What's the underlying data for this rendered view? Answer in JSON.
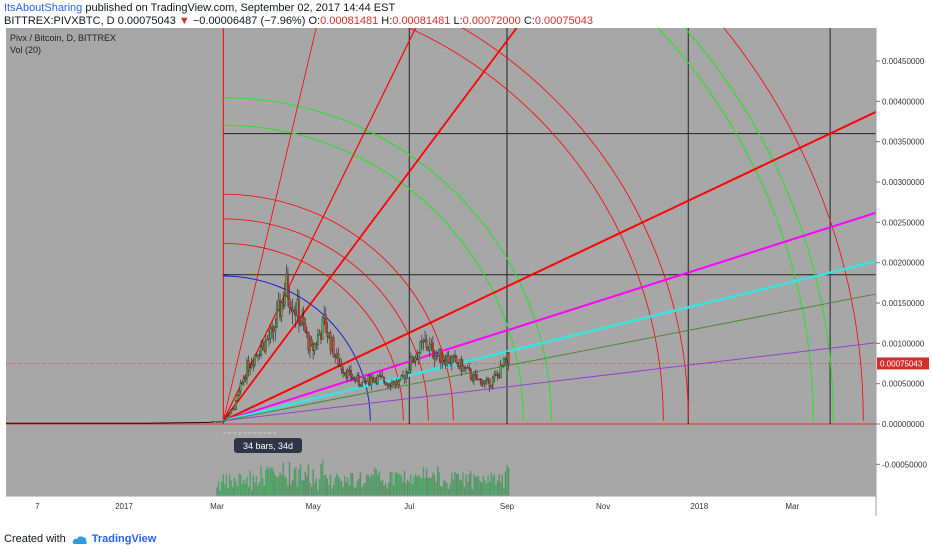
{
  "header": {
    "author": "ItsAboutSharing",
    "published": "published on TradingView.com, September 02, 2017 14:44 EST",
    "symbol": "BITTREX:PIVXBTC, D",
    "price": "0.00075043",
    "arrow": "▼",
    "change": "−0.00006487 (−7.96%)",
    "o_label": "O:",
    "o": "0.00081481",
    "h_label": "H:",
    "h": "0.00081481",
    "l_label": "L:",
    "l": "0.00072000",
    "c_label": "C:",
    "c": "0.00075043"
  },
  "legend": {
    "pair": "Pivx / Bitcoin, D, BITTREX",
    "vol": "Vol (20)"
  },
  "measure_label": "34 bars, 34d",
  "footer": {
    "created": "Created with",
    "brand": "TradingView"
  },
  "colors": {
    "up": "#4caf50",
    "down": "#e53935",
    "fan_red": "#ff0000",
    "magenta": "#ff00ff",
    "cyan": "#40e0e0",
    "arc_green": "#33dd33",
    "arc_blue": "#2222cc"
  },
  "chart_data": {
    "type": "candlestick",
    "title": "",
    "y_axis": {
      "scale": "linear",
      "ticks": [
        0.0045,
        0.004,
        0.0035,
        0.003,
        0.0025,
        0.002,
        0.0015,
        0.001,
        0.0005,
        0.0,
        -0.0005
      ],
      "tick_labels": [
        "0.00450000",
        "0.00400000",
        "0.00350000",
        "0.00300000",
        "0.00250000",
        "0.00200000",
        "0.00150000",
        "0.00100000",
        "0.00050000",
        "0.00000000",
        "-0.00050000"
      ],
      "ylim": [
        -0.00082,
        0.00478
      ]
    },
    "x_axis": {
      "tick_labels": [
        "7",
        "2017",
        "Mar",
        "May",
        "Jul",
        "Sep",
        "Nov",
        "2018",
        "Mar"
      ],
      "tick_dates": [
        "2016-11-07",
        "2017-01-01",
        "2017-03-01",
        "2017-05-01",
        "2017-07-01",
        "2017-09-01",
        "2017-11-01",
        "2018-01-01",
        "2018-03-01"
      ]
    },
    "last_price": 0.00075043,
    "last_price_label": "0.00075043",
    "price_path": [
      [
        "2016-06-01",
        1e-05
      ],
      [
        "2016-10-01",
        1e-05
      ],
      [
        "2017-01-15",
        1e-05
      ],
      [
        "2017-02-25",
        2e-05
      ],
      [
        "2017-03-05",
        4e-05
      ],
      [
        "2017-03-12",
        0.0002
      ],
      [
        "2017-03-20",
        0.0007
      ],
      [
        "2017-03-28",
        0.00095
      ],
      [
        "2017-04-05",
        0.0011
      ],
      [
        "2017-04-14",
        0.0017
      ],
      [
        "2017-04-22",
        0.00135
      ],
      [
        "2017-04-30",
        0.0009
      ],
      [
        "2017-05-08",
        0.00125
      ],
      [
        "2017-05-16",
        0.0008
      ],
      [
        "2017-05-24",
        0.0006
      ],
      [
        "2017-06-01",
        0.0005
      ],
      [
        "2017-06-09",
        0.00058
      ],
      [
        "2017-06-17",
        0.00052
      ],
      [
        "2017-06-25",
        0.0005
      ],
      [
        "2017-07-03",
        0.0008
      ],
      [
        "2017-07-11",
        0.001
      ],
      [
        "2017-07-19",
        0.00085
      ],
      [
        "2017-07-27",
        0.0008
      ],
      [
        "2017-08-04",
        0.0007
      ],
      [
        "2017-08-12",
        0.00055
      ],
      [
        "2017-08-20",
        0.0005
      ],
      [
        "2017-08-26",
        0.0006
      ],
      [
        "2017-09-01",
        0.0008
      ],
      [
        "2017-09-02",
        0.00075
      ]
    ],
    "gann": {
      "origin": [
        "2017-03-05",
        4e-05
      ],
      "grid_dates": [
        "2017-07-01",
        "2017-09-01",
        "2017-12-25",
        "2018-03-25"
      ],
      "grid_prices": [
        0.00185,
        0.0036
      ],
      "rays_through": [
        [
          "2017-05-01",
          0.00475
        ],
        [
          "2017-07-01",
          0.00475
        ],
        [
          "2017-09-01",
          0.00475
        ],
        [
          "2018-03-25",
          0.0036
        ],
        [
          "2018-04-20",
          0.0026
        ],
        [
          "2018-04-20",
          0.002
        ],
        [
          "2018-04-20",
          0.0016
        ],
        [
          "2018-04-20",
          0.001
        ]
      ]
    }
  }
}
